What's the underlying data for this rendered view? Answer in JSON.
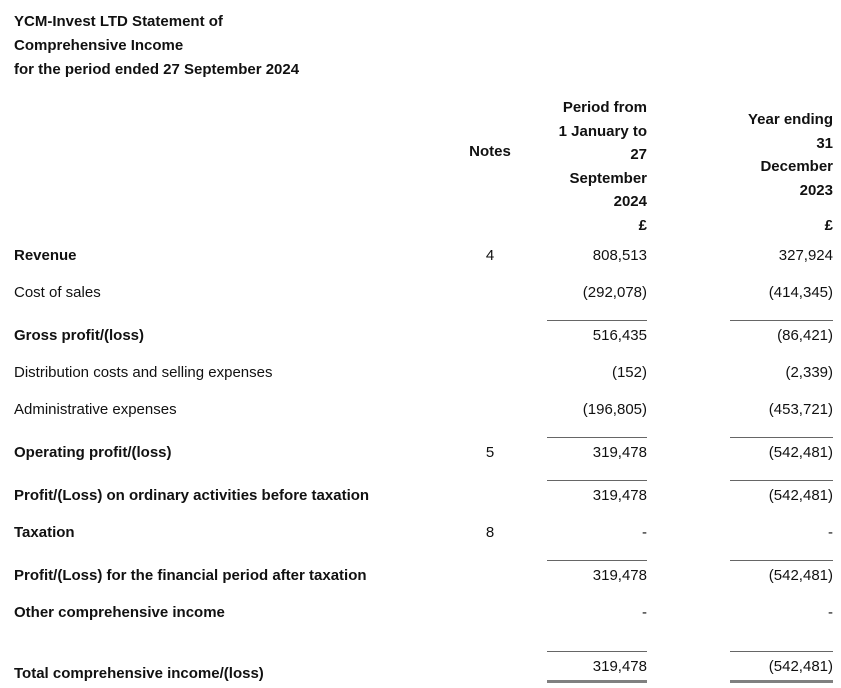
{
  "colors": {
    "text": "#111111",
    "rule": "#666666",
    "total_rule": "#808080"
  },
  "title": {
    "line1": "YCM-Invest LTD Statement of",
    "line2": "Comprehensive Income",
    "line3": "for the period ended 27 September 2024"
  },
  "table": {
    "headers": {
      "notes": "Notes",
      "col1": "Period from 1 January to 27 September 2024",
      "col1_lines": [
        "Period from",
        "1 January to",
        "27",
        "September",
        "2024"
      ],
      "col2": "Year ending 31 December 2023",
      "col2_lines": [
        "Year ending",
        "31",
        "December",
        "2023"
      ],
      "currency_col1": "£",
      "currency_col2": "£"
    },
    "rows": [
      {
        "label": "Revenue",
        "note": "4",
        "col1": "808,513",
        "col2": "327,924"
      },
      {
        "label": "Cost of sales",
        "note": "",
        "col1": "(292,078)",
        "col2": "(414,345)"
      },
      {
        "label": "Gross profit/(loss)",
        "note": "",
        "col1": "516,435",
        "col2": "(86,421)"
      },
      {
        "label": "Distribution costs and selling expenses",
        "note": "",
        "col1": "(152)",
        "col2": "(2,339)"
      },
      {
        "label": "Administrative expenses",
        "note": "",
        "col1": "(196,805)",
        "col2": "(453,721)"
      },
      {
        "label": "Operating profit/(loss)",
        "note": "5",
        "col1": "319,478",
        "col2": "(542,481)"
      },
      {
        "label": "Profit/(Loss) on ordinary activities before taxation",
        "note": "",
        "col1": "319,478",
        "col2": "(542,481)"
      },
      {
        "label": "Taxation",
        "note": "8",
        "col1": "-",
        "col2": "-"
      },
      {
        "label": "Profit/(Loss) for the financial period after taxation",
        "note": "",
        "col1": "319,478",
        "col2": "(542,481)"
      },
      {
        "label": "Other comprehensive income",
        "note": "",
        "col1": "-",
        "col2": "-"
      },
      {
        "label": "Total comprehensive income/(loss)",
        "note": "",
        "col1": "319,478",
        "col2": "(542,481)"
      }
    ]
  }
}
